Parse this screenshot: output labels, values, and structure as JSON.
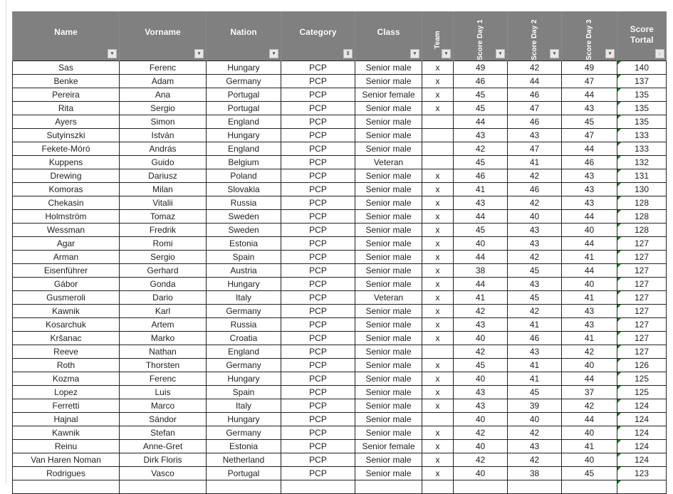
{
  "headers": [
    {
      "label": "Name",
      "vertical": false,
      "filter": "dropdown"
    },
    {
      "label": "Vorname",
      "vertical": false,
      "filter": "dropdown"
    },
    {
      "label": "Nation",
      "vertical": false,
      "filter": "dropdown"
    },
    {
      "label": "Category",
      "vertical": false,
      "filter": "filtered"
    },
    {
      "label": "Class",
      "vertical": false,
      "filter": "dropdown"
    },
    {
      "label": "Team",
      "vertical": true,
      "filter": "dropdown"
    },
    {
      "label": "Score Day 1",
      "vertical": true,
      "filter": "dropdown"
    },
    {
      "label": "Score Day 2",
      "vertical": true,
      "filter": "dropdown"
    },
    {
      "label": "Score Day 3",
      "vertical": true,
      "filter": "dropdown"
    },
    {
      "label": "Score Tortal",
      "vertical": false,
      "filter": "sorted-desc"
    }
  ],
  "colors": {
    "header_bg": "#808080",
    "header_text": "#ffffff",
    "indicator": "#1e7b1e"
  },
  "rows": [
    [
      "Sas",
      "Ferenc",
      "Hungary",
      "PCP",
      "Senior male",
      "x",
      "49",
      "42",
      "49",
      "140"
    ],
    [
      "Benke",
      "Adam",
      "Germany",
      "PCP",
      "Senior male",
      "x",
      "46",
      "44",
      "47",
      "137"
    ],
    [
      "Pereira",
      "Ana",
      "Portugal",
      "PCP",
      "Senior female",
      "x",
      "45",
      "46",
      "44",
      "135"
    ],
    [
      "Rita",
      "Sergio",
      "Portugal",
      "PCP",
      "Senior male",
      "x",
      "45",
      "47",
      "43",
      "135"
    ],
    [
      "Ayers",
      "Simon",
      "England",
      "PCP",
      "Senior male",
      "",
      "44",
      "46",
      "45",
      "135"
    ],
    [
      "Sutyinszki",
      "István",
      "Hungary",
      "PCP",
      "Senior male",
      "",
      "43",
      "43",
      "47",
      "133"
    ],
    [
      "Fekete-Móró",
      "András",
      "England",
      "PCP",
      "Senior male",
      "",
      "42",
      "47",
      "44",
      "133"
    ],
    [
      "Kuppens",
      "Guido",
      "Belgium",
      "PCP",
      "Veteran",
      "",
      "45",
      "41",
      "46",
      "132"
    ],
    [
      "Drewing",
      "Dariusz",
      "Poland",
      "PCP",
      "Senior male",
      "x",
      "46",
      "42",
      "43",
      "131"
    ],
    [
      "Komoras",
      "Milan",
      "Slovakia",
      "PCP",
      "Senior male",
      "x",
      "41",
      "46",
      "43",
      "130"
    ],
    [
      "Chekasin",
      "Vitalii",
      "Russia",
      "PCP",
      "Senior male",
      "x",
      "43",
      "42",
      "43",
      "128"
    ],
    [
      "Holmström",
      "Tomaz",
      "Sweden",
      "PCP",
      "Senior male",
      "x",
      "44",
      "40",
      "44",
      "128"
    ],
    [
      "Wessman",
      "Fredrik",
      "Sweden",
      "PCP",
      "Senior male",
      "x",
      "45",
      "43",
      "40",
      "128"
    ],
    [
      "Agar",
      "Romi",
      "Estonia",
      "PCP",
      "Senior male",
      "x",
      "40",
      "43",
      "44",
      "127"
    ],
    [
      "Arman",
      "Sergio",
      "Spain",
      "PCP",
      "Senior male",
      "x",
      "44",
      "42",
      "41",
      "127"
    ],
    [
      "Eisenführer",
      "Gerhard",
      "Austria",
      "PCP",
      "Senior male",
      "x",
      "38",
      "45",
      "44",
      "127"
    ],
    [
      "Gábor",
      "Gonda",
      "Hungary",
      "PCP",
      "Senior male",
      "x",
      "44",
      "43",
      "40",
      "127"
    ],
    [
      "Gusmeroli",
      "Dario",
      "Italy",
      "PCP",
      "Veteran",
      "x",
      "41",
      "45",
      "41",
      "127"
    ],
    [
      "Kawnik",
      "Karl",
      "Germany",
      "PCP",
      "Senior male",
      "x",
      "42",
      "42",
      "43",
      "127"
    ],
    [
      "Kosarchuk",
      "Artem",
      "Russia",
      "PCP",
      "Senior male",
      "x",
      "43",
      "41",
      "43",
      "127"
    ],
    [
      "Kršanac",
      "Marko",
      "Croatia",
      "PCP",
      "Senior male",
      "x",
      "40",
      "46",
      "41",
      "127"
    ],
    [
      "Reeve",
      "Nathan",
      "England",
      "PCP",
      "Senior male",
      "",
      "42",
      "43",
      "42",
      "127"
    ],
    [
      "Roth",
      "Thorsten",
      "Germany",
      "PCP",
      "Senior male",
      "x",
      "45",
      "41",
      "40",
      "126"
    ],
    [
      "Kozma",
      "Ferenc",
      "Hungary",
      "PCP",
      "Senior male",
      "x",
      "40",
      "41",
      "44",
      "125"
    ],
    [
      "Lopez",
      "Luis",
      "Spain",
      "PCP",
      "Senior male",
      "x",
      "43",
      "45",
      "37",
      "125"
    ],
    [
      "Ferretti",
      "Marco",
      "Italy",
      "PCP",
      "Senior male",
      "x",
      "43",
      "39",
      "42",
      "124"
    ],
    [
      "Hajnal",
      "Sándor",
      "Hungary",
      "PCP",
      "Senior male",
      "",
      "40",
      "40",
      "44",
      "124"
    ],
    [
      "Kawnik",
      "Stefan",
      "Germany",
      "PCP",
      "Senior male",
      "x",
      "42",
      "42",
      "40",
      "124"
    ],
    [
      "Reinu",
      "Anne-Gret",
      "Estonia",
      "PCP",
      "Senior female",
      "x",
      "40",
      "43",
      "41",
      "124"
    ],
    [
      "Van Haren Noman",
      "Dirk Floris",
      "Netherland",
      "PCP",
      "Senior male",
      "x",
      "42",
      "42",
      "40",
      "124"
    ],
    [
      "Rodrigues",
      "Vasco",
      "Portugal",
      "PCP",
      "Senior male",
      "x",
      "40",
      "38",
      "45",
      "123"
    ]
  ]
}
